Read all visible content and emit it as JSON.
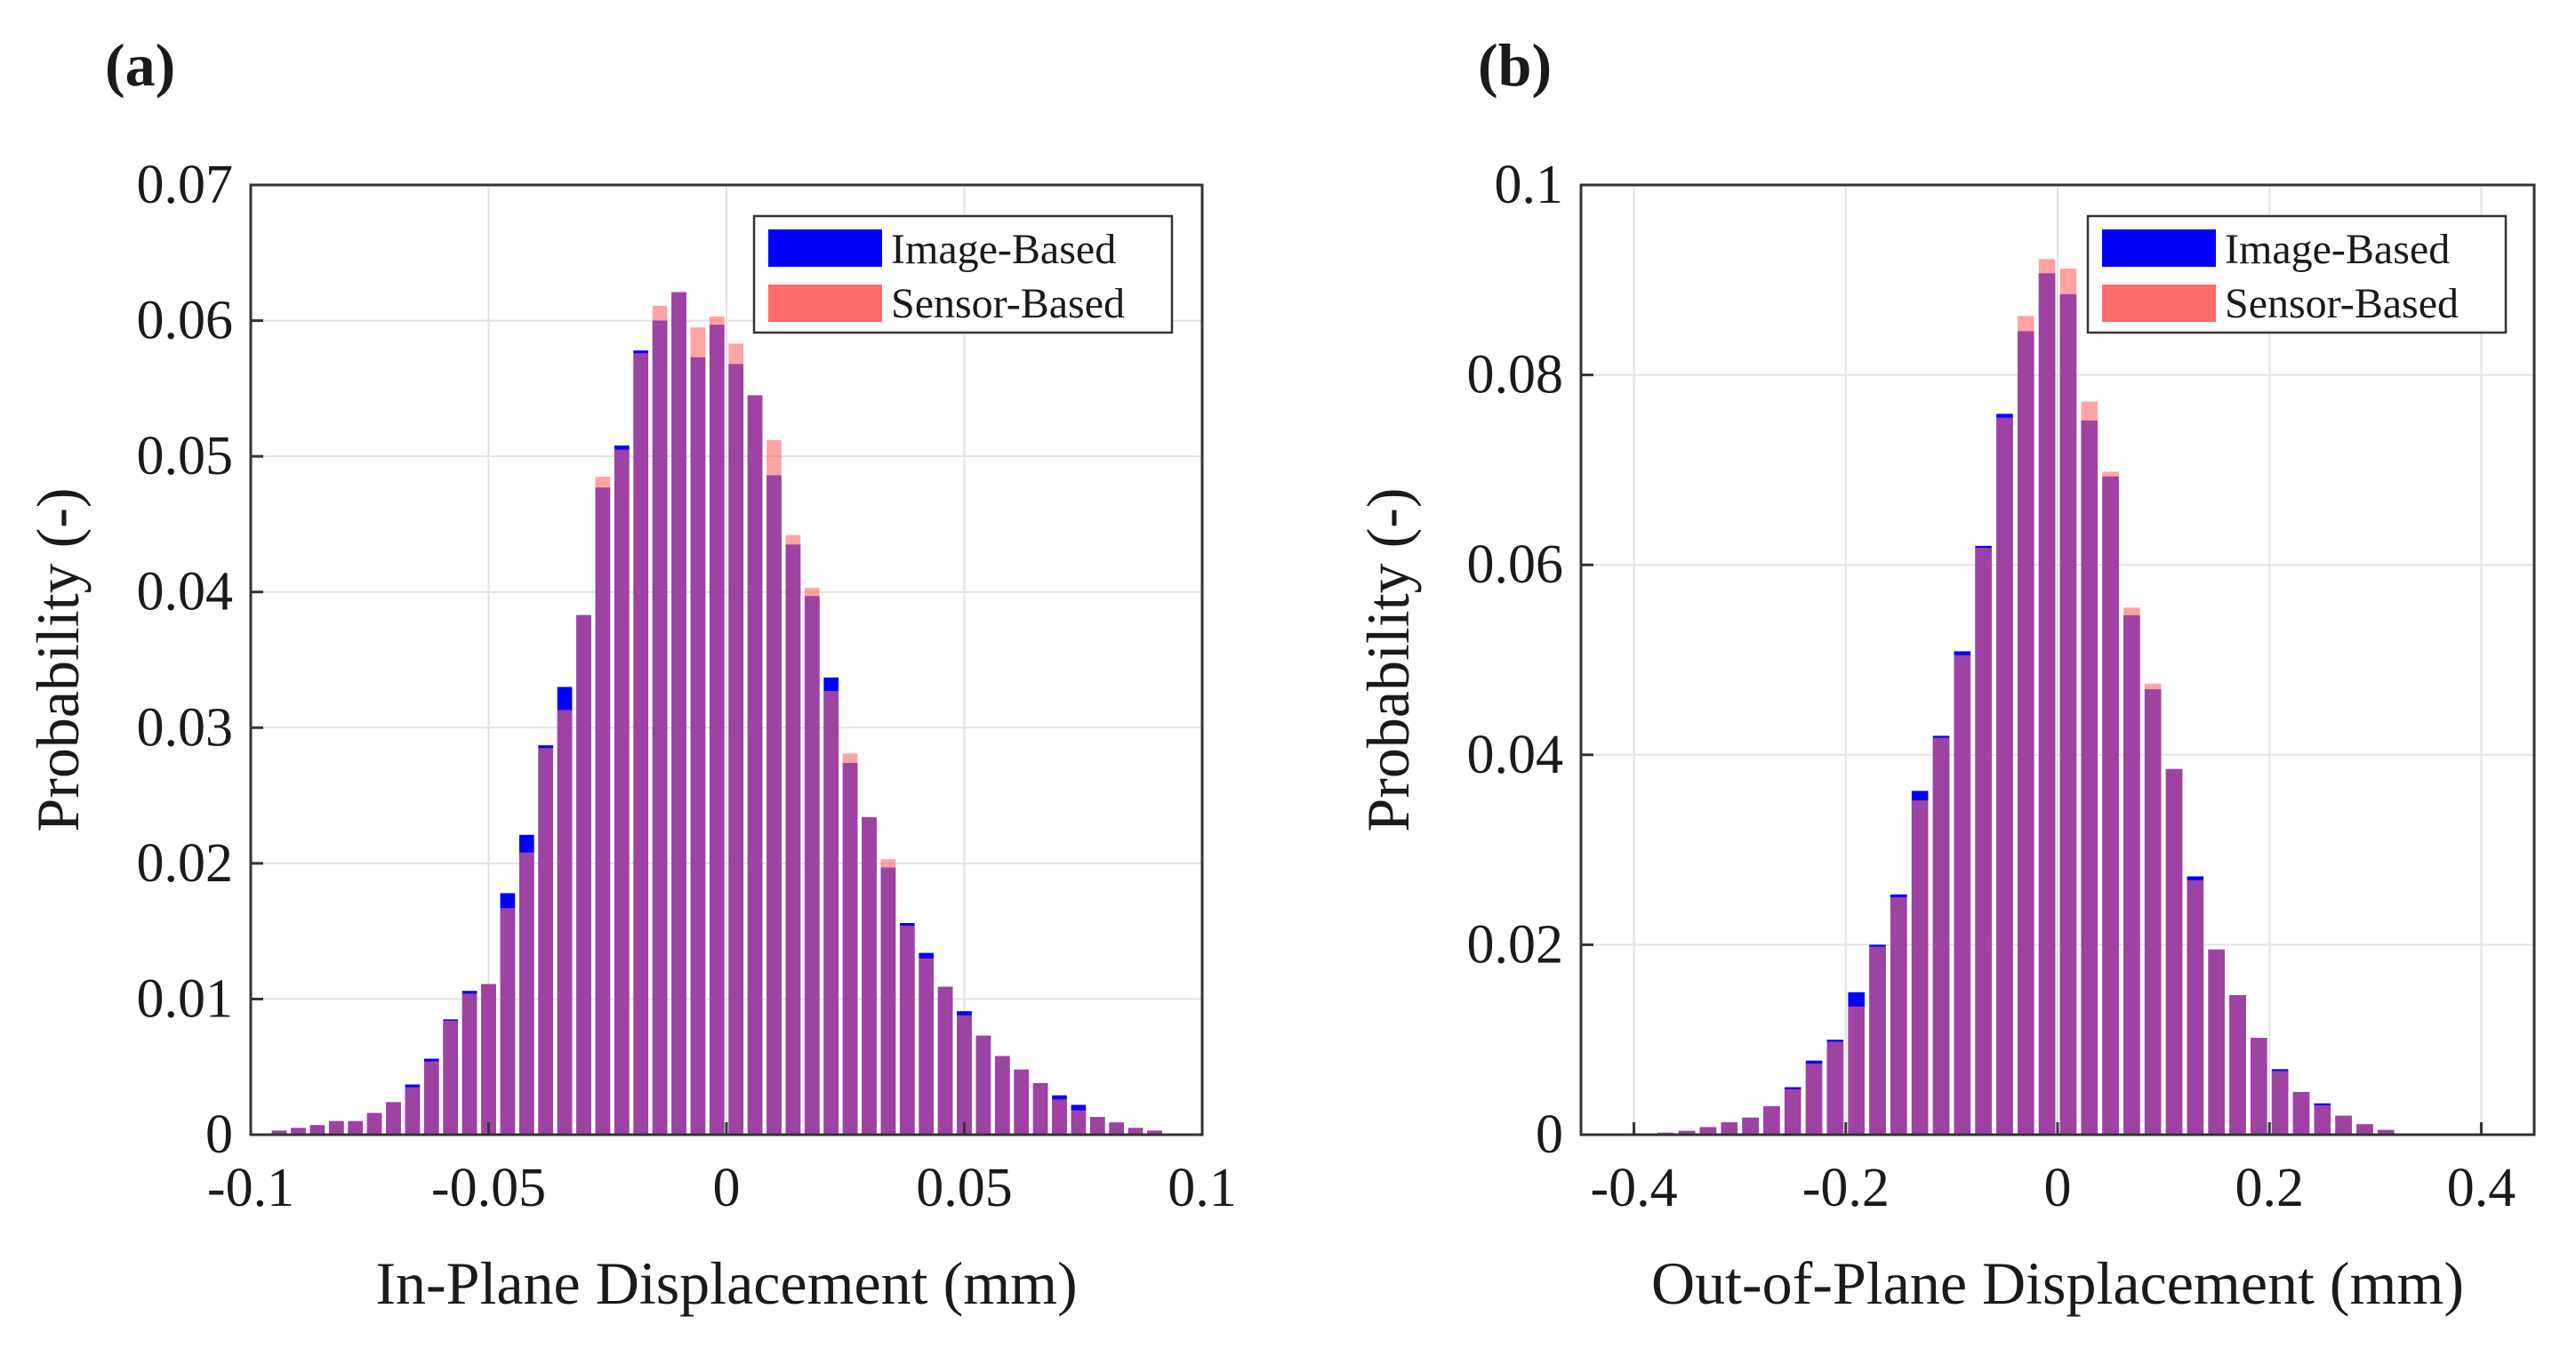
{
  "panels": [
    {
      "panel_label": "(a)",
      "legend_title_entries": [
        "Image-Based",
        "Sensor-Based"
      ],
      "chart_data": {
        "type": "bar",
        "title": "",
        "xlabel": "In-Plane Displacement (mm)",
        "ylabel": "Probability (-)",
        "xlim": [
          -0.1,
          0.1
        ],
        "ylim": [
          0,
          0.07
        ],
        "xticks": [
          -0.1,
          -0.05,
          0,
          0.05,
          0.1
        ],
        "xtick_labels": [
          "-0.1",
          "-0.05",
          "0",
          "0.05",
          "0.1"
        ],
        "yticks": [
          0,
          0.01,
          0.02,
          0.03,
          0.04,
          0.05,
          0.06,
          0.07
        ],
        "ytick_labels": [
          "0",
          "0.01",
          "0.02",
          "0.03",
          "0.04",
          "0.05",
          "0.06",
          "0.07"
        ],
        "grid": true,
        "legend_position": "top-right",
        "bin_width": 0.004,
        "x": [
          -0.094,
          -0.09,
          -0.086,
          -0.082,
          -0.078,
          -0.074,
          -0.07,
          -0.066,
          -0.062,
          -0.058,
          -0.054,
          -0.05,
          -0.046,
          -0.042,
          -0.038,
          -0.034,
          -0.03,
          -0.026,
          -0.022,
          -0.018,
          -0.014,
          -0.01,
          -0.006,
          -0.002,
          0.002,
          0.006,
          0.01,
          0.014,
          0.018,
          0.022,
          0.026,
          0.03,
          0.034,
          0.038,
          0.042,
          0.046,
          0.05,
          0.054,
          0.058,
          0.062,
          0.066,
          0.07,
          0.074,
          0.078,
          0.082,
          0.086,
          0.09
        ],
        "series": [
          {
            "name": "Image-Based",
            "color": "#0000ff",
            "values": [
              0.0003,
              0.0005,
              0.0007,
              0.001,
              0.001,
              0.0016,
              0.0024,
              0.0037,
              0.0056,
              0.0085,
              0.0106,
              0.0111,
              0.0178,
              0.0221,
              0.0287,
              0.033,
              0.0383,
              0.0477,
              0.0508,
              0.0578,
              0.06,
              0.0621,
              0.0573,
              0.0597,
              0.0568,
              0.0545,
              0.0486,
              0.0435,
              0.0397,
              0.0337,
              0.0274,
              0.0234,
              0.0197,
              0.0156,
              0.0134,
              0.0109,
              0.0091,
              0.0073,
              0.0058,
              0.0048,
              0.0038,
              0.0029,
              0.0022,
              0.0013,
              0.0009,
              0.0005,
              0.0003
            ]
          },
          {
            "name": "Sensor-Based",
            "color": "#ff6a6a",
            "values": [
              0.0003,
              0.0005,
              0.0007,
              0.001,
              0.001,
              0.0016,
              0.0024,
              0.0035,
              0.0054,
              0.0084,
              0.0104,
              0.0111,
              0.0167,
              0.0208,
              0.0285,
              0.0313,
              0.0383,
              0.0485,
              0.0505,
              0.0576,
              0.0611,
              0.0621,
              0.0595,
              0.0603,
              0.0583,
              0.0545,
              0.0512,
              0.0442,
              0.0403,
              0.0327,
              0.0281,
              0.0234,
              0.0203,
              0.0154,
              0.013,
              0.0109,
              0.0088,
              0.0073,
              0.0058,
              0.0048,
              0.0038,
              0.0026,
              0.0018,
              0.0013,
              0.0009,
              0.0005,
              0.0003
            ]
          }
        ]
      }
    },
    {
      "panel_label": "(b)",
      "legend_title_entries": [
        "Image-Based",
        "Sensor-Based"
      ],
      "chart_data": {
        "type": "bar",
        "title": "",
        "xlabel": "Out-of-Plane Displacement (mm)",
        "ylabel": "Probability (-)",
        "xlim": [
          -0.45,
          0.45
        ],
        "ylim": [
          0,
          0.1
        ],
        "xticks": [
          -0.4,
          -0.2,
          0,
          0.2,
          0.4
        ],
        "xtick_labels": [
          "-0.4",
          "-0.2",
          "0",
          "0.2",
          "0.4"
        ],
        "yticks": [
          0,
          0.02,
          0.04,
          0.06,
          0.08,
          0.1
        ],
        "ytick_labels": [
          "0",
          "0.02",
          "0.04",
          "0.06",
          "0.08",
          "0.1"
        ],
        "grid": true,
        "legend_position": "top-right",
        "bin_width": 0.02,
        "x": [
          -0.39,
          -0.37,
          -0.35,
          -0.33,
          -0.31,
          -0.29,
          -0.27,
          -0.25,
          -0.23,
          -0.21,
          -0.19,
          -0.17,
          -0.15,
          -0.13,
          -0.11,
          -0.09,
          -0.07,
          -0.05,
          -0.03,
          -0.01,
          0.01,
          0.03,
          0.05,
          0.07,
          0.09,
          0.11,
          0.13,
          0.15,
          0.17,
          0.19,
          0.21,
          0.23,
          0.25,
          0.27,
          0.29,
          0.31
        ],
        "series": [
          {
            "name": "Image-Based",
            "color": "#0000ff",
            "values": [
              0.0001,
              0.0002,
              0.0004,
              0.0008,
              0.0013,
              0.0018,
              0.003,
              0.005,
              0.0078,
              0.01,
              0.015,
              0.02,
              0.0253,
              0.0362,
              0.042,
              0.0509,
              0.062,
              0.0759,
              0.0846,
              0.0907,
              0.0885,
              0.0752,
              0.0693,
              0.0547,
              0.0469,
              0.0385,
              0.0272,
              0.0195,
              0.0147,
              0.0102,
              0.0069,
              0.0045,
              0.0033,
              0.002,
              0.0011,
              0.0005
            ]
          },
          {
            "name": "Sensor-Based",
            "color": "#ff6a6a",
            "values": [
              0.0001,
              0.0002,
              0.0004,
              0.0008,
              0.0013,
              0.0018,
              0.003,
              0.0048,
              0.0075,
              0.0098,
              0.0135,
              0.0198,
              0.025,
              0.0352,
              0.0418,
              0.0505,
              0.0618,
              0.0755,
              0.0862,
              0.0922,
              0.0912,
              0.0772,
              0.0698,
              0.0555,
              0.0475,
              0.0385,
              0.0268,
              0.0195,
              0.0147,
              0.0102,
              0.0067,
              0.0045,
              0.0031,
              0.002,
              0.0011,
              0.0005
            ]
          }
        ]
      }
    }
  ]
}
